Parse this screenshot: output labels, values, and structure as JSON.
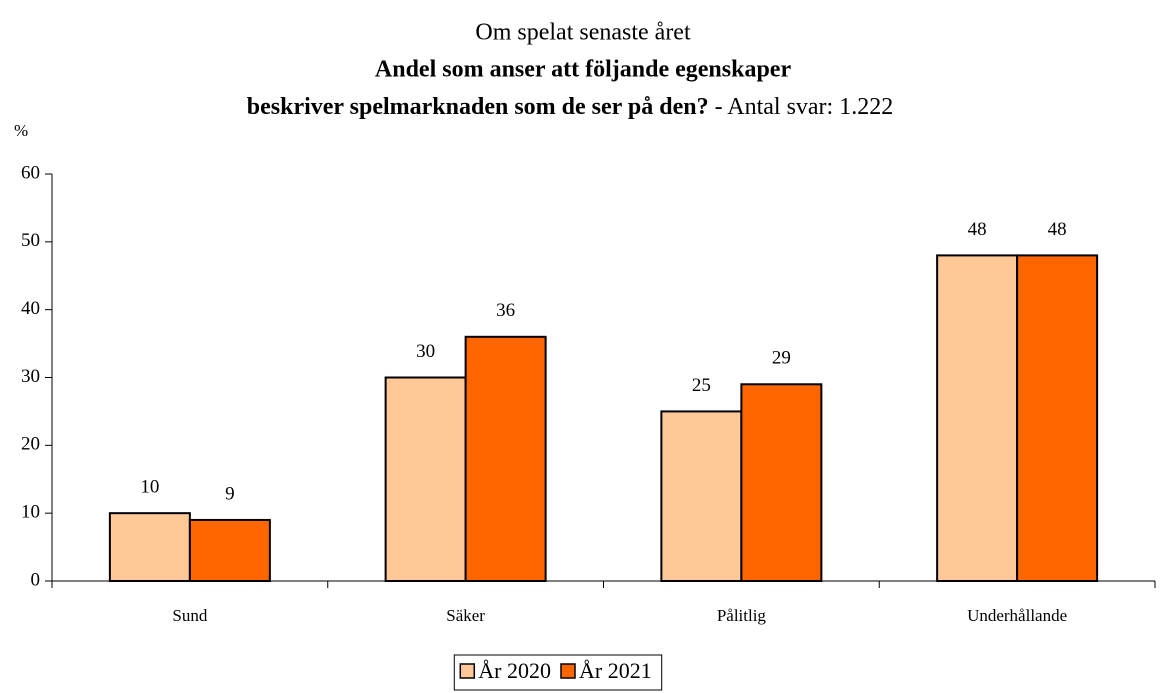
{
  "chart_data": {
    "type": "bar",
    "title": "Om spelat senaste året",
    "subtitle": [
      "Andel som anser att följande egenskaper",
      "beskriver spelmarknaden som de ser på den?"
    ],
    "subtitle_note": "- Antal svar: 1.222",
    "y_label": "%",
    "categories": [
      "Sund",
      "Säker",
      "Pålitlig",
      "Underhållande"
    ],
    "series": [
      {
        "name": "År 2020",
        "color": "#FFC896",
        "values": [
          10,
          30,
          25,
          48
        ]
      },
      {
        "name": "År 2021",
        "color": "#FF6600",
        "values": [
          9,
          36,
          29,
          48
        ]
      }
    ],
    "ylim": [
      0,
      60
    ],
    "yticks": [
      0,
      10,
      20,
      30,
      40,
      50,
      60
    ],
    "legend": "bottom"
  }
}
